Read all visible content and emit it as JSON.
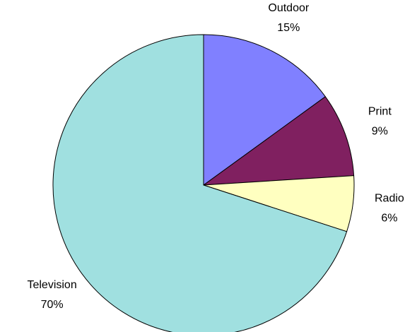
{
  "chart_data": {
    "type": "pie",
    "categories": [
      "Outdoor",
      "Print",
      "Radio",
      "Television"
    ],
    "values": [
      15,
      9,
      6,
      70
    ],
    "value_labels": [
      "15%",
      "9%",
      "6%",
      "70%"
    ],
    "colors": [
      "#8080ff",
      "#802060",
      "#ffffc0",
      "#a0e0e0"
    ]
  }
}
